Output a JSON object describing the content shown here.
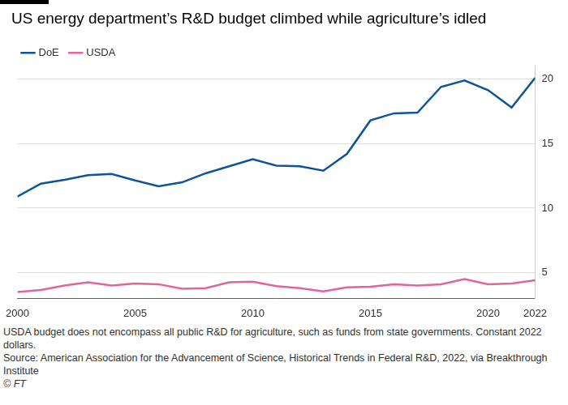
{
  "chart_data": {
    "type": "line",
    "title": "US energy department’s R&D budget climbed while agriculture’s idled",
    "x": [
      2000,
      2001,
      2002,
      2003,
      2004,
      2005,
      2006,
      2007,
      2008,
      2009,
      2010,
      2011,
      2012,
      2013,
      2014,
      2015,
      2016,
      2017,
      2018,
      2019,
      2020,
      2021,
      2022
    ],
    "series": [
      {
        "name": "DoE",
        "color": "#0f5499",
        "values": [
          10.9,
          11.9,
          12.2,
          12.55,
          12.65,
          12.15,
          11.7,
          12.0,
          12.7,
          13.25,
          13.8,
          13.3,
          13.25,
          12.9,
          14.2,
          16.8,
          17.35,
          17.4,
          19.4,
          19.9,
          19.15,
          17.8,
          20.1
        ]
      },
      {
        "name": "USDA",
        "color": "#e3649b",
        "values": [
          3.5,
          3.65,
          4.0,
          4.25,
          4.0,
          4.15,
          4.1,
          3.75,
          3.8,
          4.25,
          4.3,
          3.95,
          3.8,
          3.55,
          3.85,
          3.9,
          4.1,
          4.0,
          4.1,
          4.5,
          4.1,
          4.15,
          4.4
        ]
      }
    ],
    "xlim": [
      2000,
      2022
    ],
    "xticks": [
      2000,
      2005,
      2010,
      2015,
      2020,
      2022
    ],
    "ylim": [
      3,
      21
    ],
    "yticks": [
      5,
      10,
      15,
      20
    ],
    "grid": true,
    "legend": "top-left",
    "note": "USDA budget does not encompass all public R&D for agriculture, such as funds from state governments. Constant 2022 dollars.",
    "source": "Source: American Association for the Advancement of Science, Historical Trends in Federal R&D, 2022, via Breakthrough Institute",
    "credit": "© FT"
  }
}
